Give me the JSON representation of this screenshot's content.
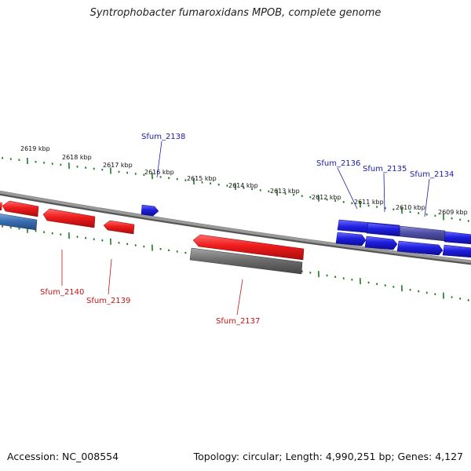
{
  "title": "Syntrophobacter fumaroxidans MPOB, complete genome",
  "footer": {
    "accession": "Accession: NC_008554",
    "summary": "Topology: circular; Length: 4,990,251 bp; Genes: 4,127"
  },
  "colors": {
    "forward_gene": "#1f1fe0",
    "reverse_gene": "#ee1b1b",
    "forward_rna": "#3a6fb3",
    "forward_other": "#4f4fa8",
    "reverse_other": "#6e6e6e",
    "backbone": "#8a8a8a",
    "tick": "#1f7a1f",
    "forward_label": "#1a1aa8",
    "reverse_label": "#c41414"
  },
  "scale_labels": [
    "2619 kbp",
    "2618 kbp",
    "2617 kbp",
    "2616 kbp",
    "2615 kbp",
    "2614 kbp",
    "2613 kbp",
    "2612 kbp",
    "2611 kbp",
    "2610 kbp",
    "2609 kbp"
  ],
  "gene_labels": {
    "sfum_2138": "Sfum_2138",
    "sfum_2136": "Sfum_2136",
    "sfum_2135": "Sfum_2135",
    "sfum_2134": "Sfum_2134",
    "sfum_2140": "Sfum_2140",
    "sfum_2139": "Sfum_2139",
    "sfum_2137": "Sfum_2137"
  }
}
